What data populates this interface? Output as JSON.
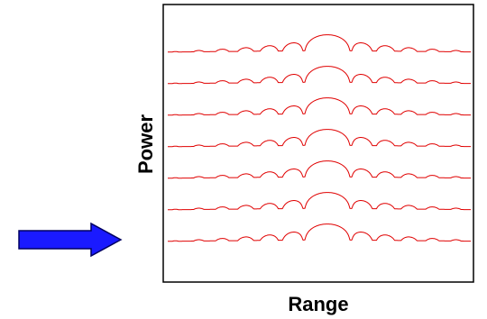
{
  "axes": {
    "y_label": "Power",
    "x_label": "Range"
  }
}
